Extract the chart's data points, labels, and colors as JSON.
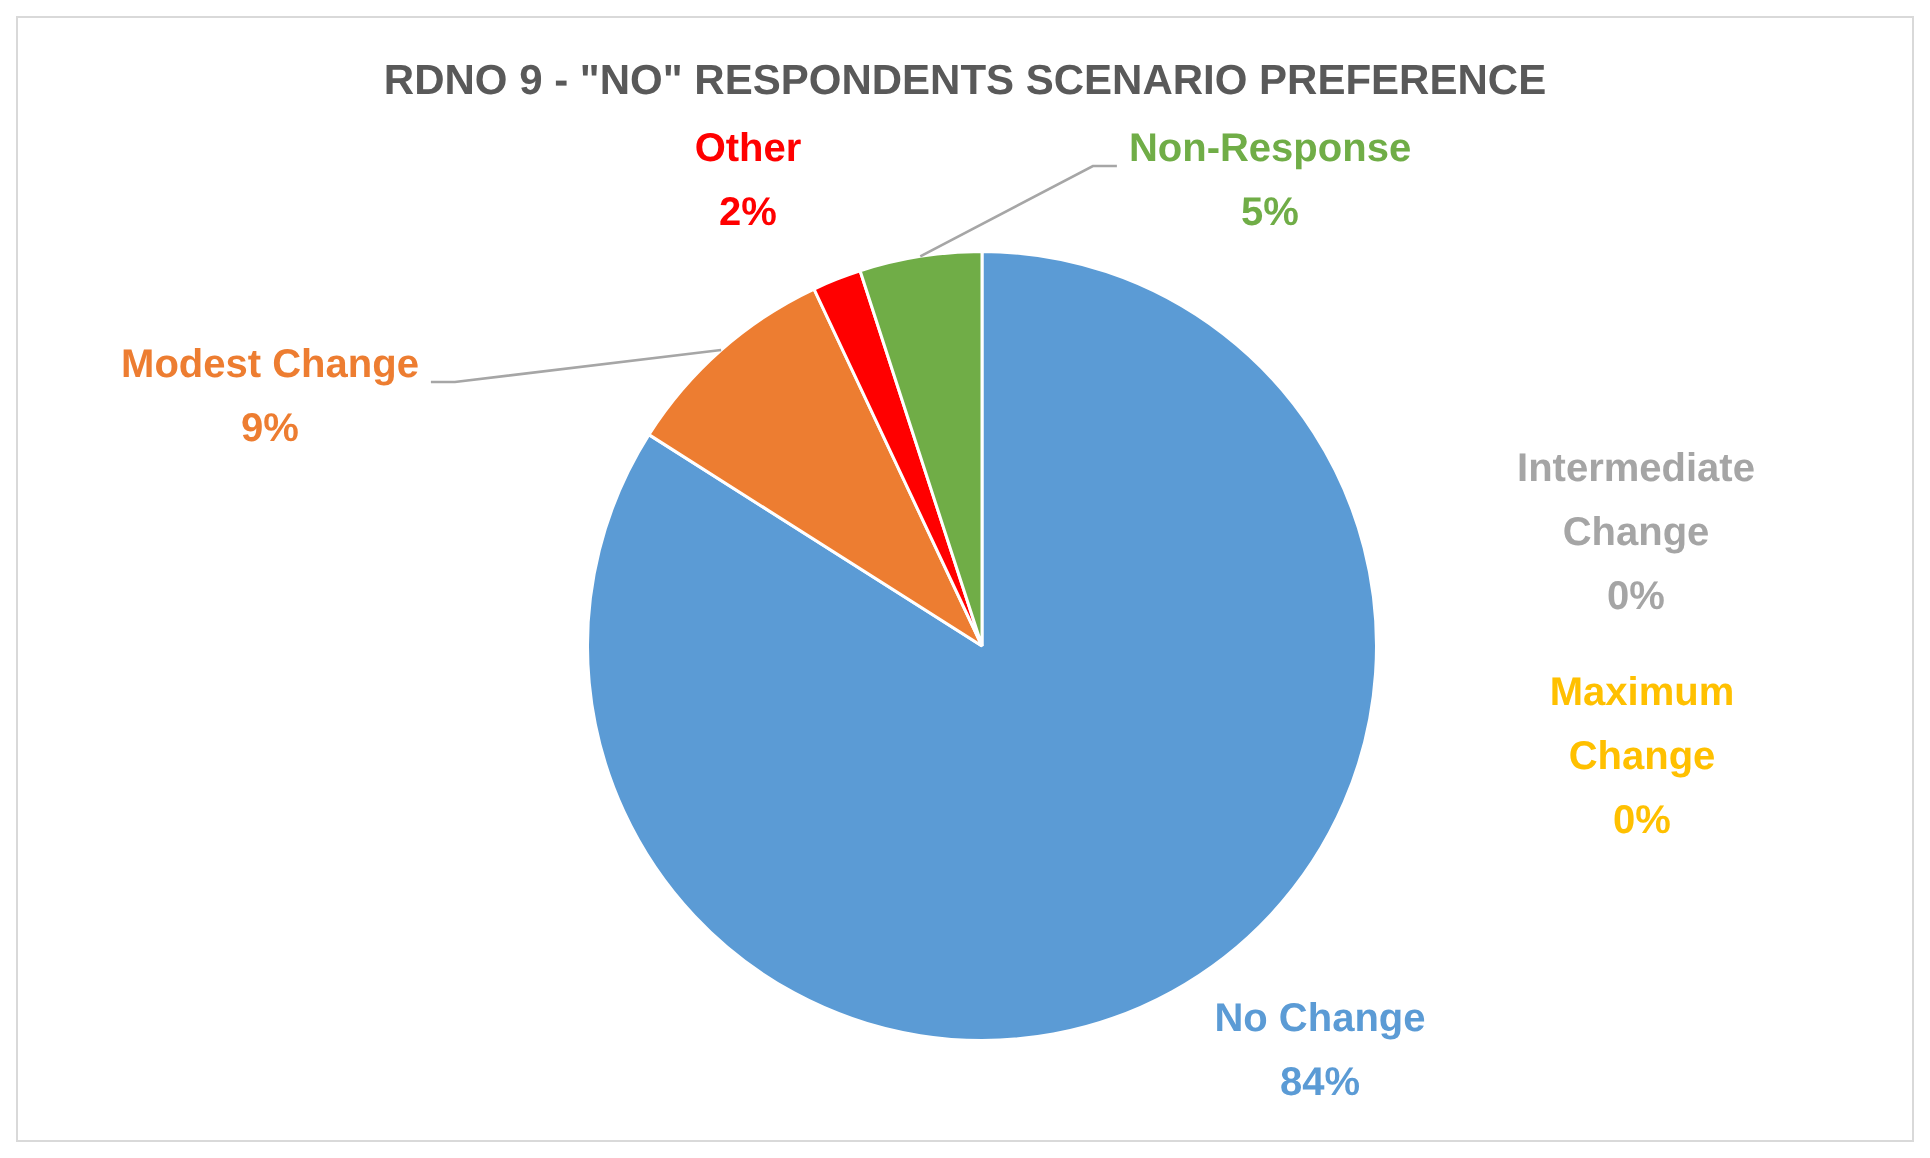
{
  "chart_data": {
    "type": "pie",
    "title": "RDNO 9 - \"NO\" RESPONDENTS SCENARIO PREFERENCE",
    "categories": [
      "No Change",
      "Intermediate Change",
      "Maximum Change",
      "Modest Change",
      "Other",
      "Non-Response"
    ],
    "values": [
      84,
      0,
      0,
      9,
      2,
      5
    ],
    "value_labels": [
      "84%",
      "0%",
      "0%",
      "9%",
      "2%",
      "5%"
    ],
    "colors": [
      "#5b9bd5",
      "#a5a5a5",
      "#ffc000",
      "#ed7d31",
      "#ff0000",
      "#70ad47"
    ],
    "legend": false
  }
}
